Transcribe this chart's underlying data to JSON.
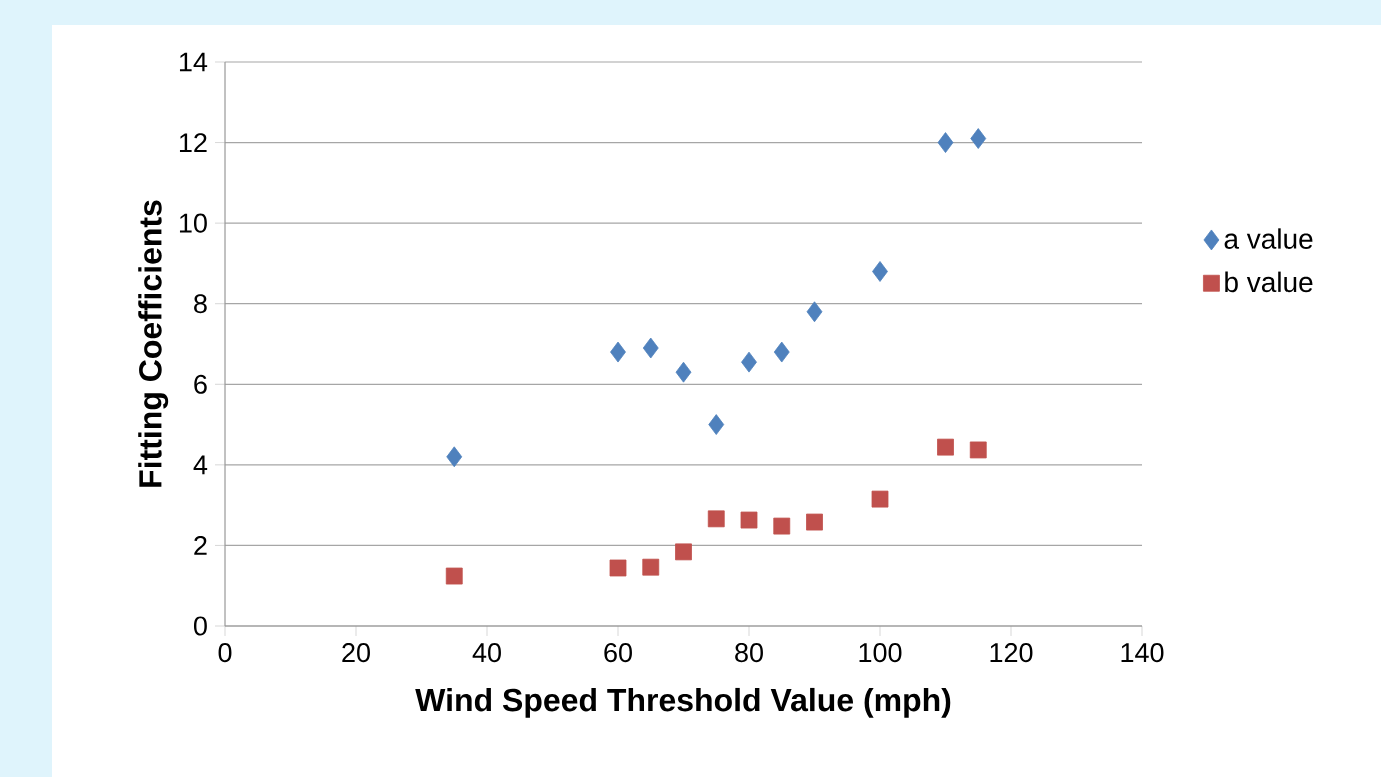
{
  "chart_data": {
    "type": "scatter",
    "xlabel": "Wind Speed Threshold Value (mph)",
    "ylabel": "Fitting Coefficients",
    "x": [
      35,
      60,
      65,
      70,
      75,
      80,
      85,
      90,
      100,
      110,
      115
    ],
    "series": [
      {
        "name": "a value",
        "color": "#4f81bd",
        "marker": "diamond",
        "values": [
          4.2,
          6.8,
          6.9,
          6.3,
          5.0,
          6.55,
          6.8,
          7.8,
          8.8,
          12.0,
          12.1
        ]
      },
      {
        "name": "b value",
        "color": "#c0504d",
        "marker": "square",
        "values": [
          1.24,
          1.44,
          1.46,
          1.84,
          2.66,
          2.63,
          2.48,
          2.58,
          3.15,
          4.44,
          4.37
        ]
      }
    ],
    "xlim": [
      0,
      140
    ],
    "xticks": [
      0,
      20,
      40,
      60,
      80,
      100,
      120,
      140
    ],
    "ylim": [
      0,
      14
    ],
    "yticks": [
      0,
      2,
      4,
      6,
      8,
      10,
      12,
      14
    ],
    "grid": "y",
    "legend": "right"
  }
}
